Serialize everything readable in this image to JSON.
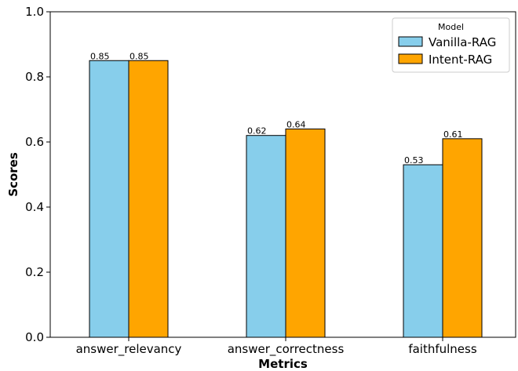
{
  "chart_data": {
    "type": "bar",
    "categories": [
      "answer_relevancy",
      "answer_correctness",
      "faithfulness"
    ],
    "series": [
      {
        "name": "Vanilla-RAG",
        "values": [
          0.85,
          0.62,
          0.53
        ],
        "labels": [
          "0.85",
          "0.62",
          "0.53"
        ],
        "color": "#87CEEB"
      },
      {
        "name": "Intent-RAG",
        "values": [
          0.85,
          0.64,
          0.61
        ],
        "labels": [
          "0.85",
          "0.64",
          "0.61"
        ],
        "color": "#FFA500"
      }
    ],
    "xlabel": "Metrics",
    "ylabel": "Scores",
    "ylim": [
      0,
      1.0
    ],
    "yticks": [
      0.0,
      0.2,
      0.4,
      0.6,
      0.8,
      1.0
    ],
    "ytick_labels": [
      "0.0",
      "0.2",
      "0.4",
      "0.6",
      "0.8",
      "1.0"
    ],
    "legend": {
      "title": "Model",
      "placement": "top-right"
    },
    "grid": false
  }
}
